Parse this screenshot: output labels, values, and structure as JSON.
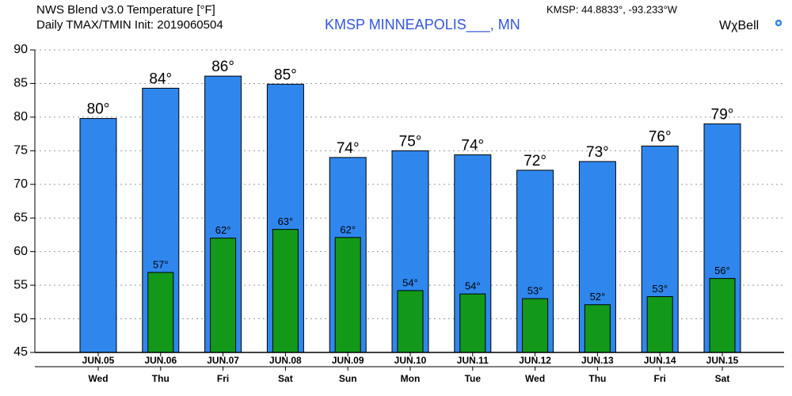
{
  "chart_data": {
    "type": "bar",
    "title": "NWS Blend v3.0 Temperature [°F]",
    "subtitle": "Daily TMAX/TMIN Init: 2019060504",
    "station": "KMSP MINNEAPOLIS___, MN",
    "location": "KMSP: 44.8833°, -93.233°W",
    "brand": "WχBell",
    "categories": [
      "JUN.05",
      "JUN.06",
      "JUN.07",
      "JUN.08",
      "JUN.09",
      "JUN.10",
      "JUN.11",
      "JUN.12",
      "JUN.13",
      "JUN.14",
      "JUN.15"
    ],
    "weekdays": [
      "Wed",
      "Thu",
      "Fri",
      "Sat",
      "Sun",
      "Mon",
      "Tue",
      "Wed",
      "Thu",
      "Fri",
      "Sat"
    ],
    "series": [
      {
        "color": "#2f87ee",
        "values": [
          79.8,
          84.3,
          86.1,
          84.9,
          74.0,
          75.0,
          74.4,
          72.1,
          73.4,
          75.7,
          79.0
        ],
        "value_labels": [
          "80°",
          "84°",
          "86°",
          "85°",
          "74°",
          "75°",
          "74°",
          "72°",
          "73°",
          "76°",
          "79°"
        ]
      },
      {
        "color": "#12991a",
        "values": [
          null,
          56.9,
          62.0,
          63.3,
          62.1,
          54.2,
          53.7,
          53.0,
          52.1,
          53.3,
          56.0
        ],
        "value_labels": [
          null,
          "57°",
          "62°",
          "63°",
          "62°",
          "54°",
          "54°",
          "53°",
          "52°",
          "53°",
          "56°"
        ]
      }
    ],
    "ylim": [
      45,
      90
    ],
    "yticks": [
      45,
      50,
      55,
      60,
      65,
      70,
      75,
      80,
      85,
      90
    ],
    "grid": true
  }
}
